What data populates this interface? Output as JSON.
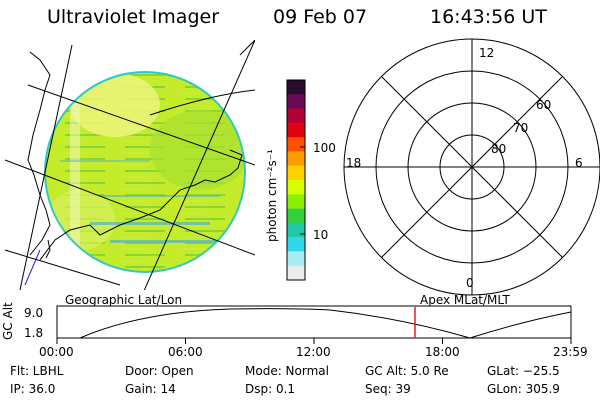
{
  "header": {
    "instrument": "Ultraviolet Imager",
    "date": "09 Feb 07",
    "time": "16:43:56 UT"
  },
  "colorbar": {
    "unit_label": "photon cm⁻²s⁻¹",
    "tick_100": "100",
    "tick_10": "10",
    "colors": [
      "#2a0a2e",
      "#6a0a55",
      "#b00035",
      "#e00010",
      "#ff5000",
      "#ff9c00",
      "#ffd200",
      "#d8ff00",
      "#8cf000",
      "#34d03c",
      "#20c8a8",
      "#30d8e8",
      "#a8ecf8",
      "#ececec"
    ]
  },
  "polar_plot": {
    "mlt_labels": {
      "top": "12",
      "left": "18",
      "right": "6",
      "bottom": "0"
    },
    "lat_labels": [
      "60",
      "70",
      "80"
    ]
  },
  "captions": {
    "left": "Geographic Lat/Lon",
    "right": "Apex MLat/MLT"
  },
  "altitude_plot": {
    "ylabel": "GC Alt",
    "y_top": "9.0",
    "y_bottom": "1.8",
    "x_ticks": [
      "00:00",
      "06:00",
      "12:00",
      "18:00",
      "23:59"
    ],
    "marker_time": "16:43:56"
  },
  "info": {
    "flt": "Flt: LBHL",
    "ip": "IP: 36.0",
    "door": "Door: Open",
    "gain": "Gain: 14",
    "mode": "Mode: Normal",
    "dsp": "Dsp:    0.1",
    "gcalt": "GC Alt: 5.0 Re",
    "seq": "Seq: 39",
    "glat": "GLat: −25.5",
    "glon": "GLon: 305.9"
  }
}
